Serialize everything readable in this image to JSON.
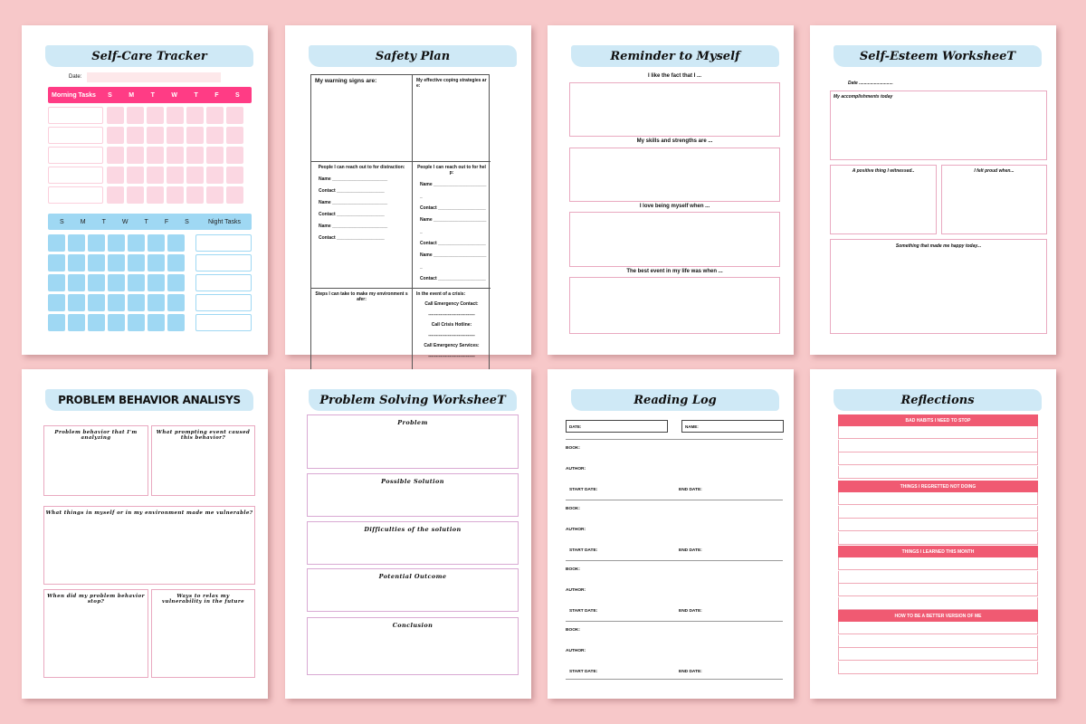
{
  "colors": {
    "background": "#f7c8c9",
    "banner": "#cfe9f6",
    "morning": "#ff3c85",
    "morning_cell": "#fbd7e2",
    "night": "#9fd8f3",
    "reflection_header": "#f05a72"
  },
  "self_care": {
    "title": "Self-Care Tracker",
    "date_label": "Date:",
    "morning_label": "Morning Tasks",
    "night_label": "Night Tasks",
    "days": [
      "S",
      "M",
      "T",
      "W",
      "T",
      "F",
      "S"
    ]
  },
  "safety": {
    "title": "Safety Plan",
    "warning": "My warning signs are:",
    "coping": "My effective coping strategies are:",
    "distraction": "People I can reach out to for distraction:",
    "help": "People I can reach out to for help:",
    "name": "Name ______________________",
    "contact": "Contact ___________________",
    "steps": "Steps I can take to make my environment safer:",
    "crisis": "In the event of a crisis:",
    "emergency_contact": "Call Emergency Contact:",
    "crisis_hotline": "Call Crisis Hotline:",
    "emergency_services": "Call Emergency Services:",
    "blank": "-------------------------------"
  },
  "reminder": {
    "title": "Reminder to Myself",
    "prompts": [
      "I like the fact that I ...",
      "My skills and strengths are ...",
      "I love being myself when ...",
      "The best event in my life was when ..."
    ]
  },
  "esteem": {
    "title": "Self-Esteem WorksheeT",
    "date": "Date ...........................",
    "accomplishments": "My accomplishments today",
    "positive": "A positive thing I witnessed..",
    "proud": "I felt proud when...",
    "happy": "Something that made me happy today..."
  },
  "behavior": {
    "title": "PROBLEM BEHAVIOR ANALISYS",
    "q1": "Problem behavior that I'm analyzing",
    "q2": "What prompting event caused this behavior?",
    "q3": "What things in myself or in my environment made me vulnerable?",
    "q4": "When did my problem behavior stop?",
    "q5": "Ways to relax my vulnerability in the future"
  },
  "solving": {
    "title": "Problem Solving WorksheeT",
    "sections": [
      "Problem",
      "Possible Solution",
      "Difficulties of the solution",
      "Potential Outcome",
      "Conclusion"
    ]
  },
  "reading": {
    "title": "Reading Log",
    "date": "DATE:",
    "name": "NAME:",
    "book": "BOOK:",
    "author": "AUTHOR:",
    "start": "START DATE:",
    "end": "END DATE:"
  },
  "reflections": {
    "title": "Reflections",
    "sections": [
      "BAD HABITS I NEED TO STOP",
      "THINGS I REGRETTED NOT DOING",
      "THINGS I LEARNED THIS MONTH",
      "HOW TO BE A BETTER VERSION OF ME"
    ]
  }
}
